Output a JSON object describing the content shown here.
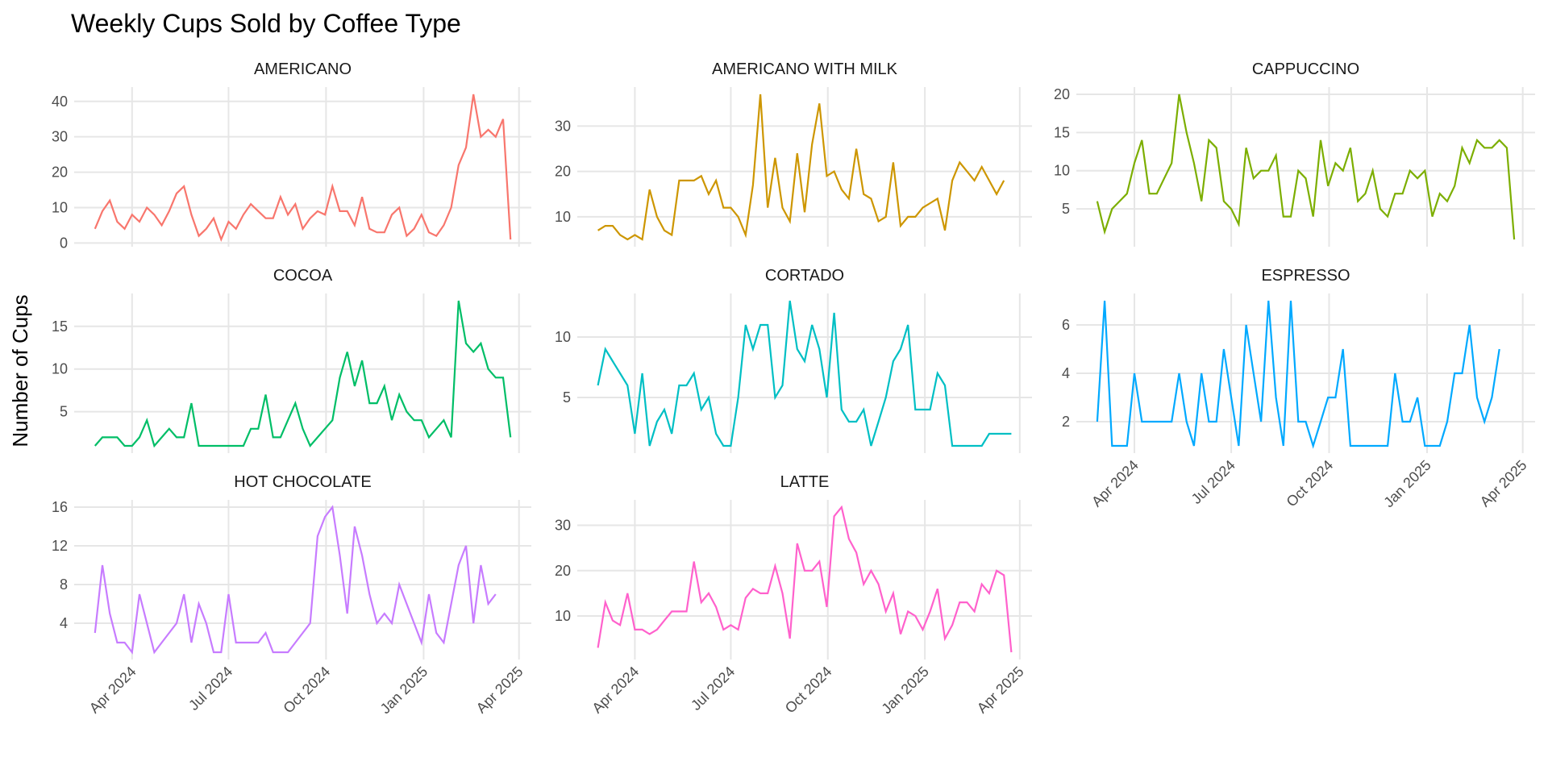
{
  "title": "Weekly Cups Sold by Coffee Type",
  "y_label": "Number of Cups",
  "x": [
    0,
    1,
    2,
    3,
    4,
    5,
    6,
    7,
    8,
    9,
    10,
    11,
    12,
    13,
    14,
    15,
    16,
    17,
    18,
    19,
    20,
    21,
    22,
    23,
    24,
    25,
    26,
    27,
    28,
    29,
    30,
    31,
    32,
    33,
    34,
    35,
    36,
    37,
    38,
    39,
    40,
    41,
    42,
    43,
    44,
    45,
    46,
    47,
    48,
    49,
    50,
    51,
    52,
    53,
    54,
    55,
    56
  ],
  "xlim": [
    -2.8,
    58.8
  ],
  "xticks": [
    {
      "value": 5,
      "label": "Apr 2024"
    },
    {
      "value": 18,
      "label": "Jul 2024"
    },
    {
      "value": 31.14,
      "label": "Oct 2024"
    },
    {
      "value": 44.29,
      "label": "Jan 2025"
    },
    {
      "value": 57.14,
      "label": "Apr 2025"
    }
  ],
  "chart_data": [
    {
      "type": "line",
      "title": "AMERICANO",
      "color": "#F8766D",
      "ylim": [
        -1.05,
        44.05
      ],
      "yticks": [
        0,
        10,
        20,
        30,
        40
      ],
      "values": [
        4,
        9,
        12,
        6,
        4,
        8,
        6,
        10,
        8,
        5,
        9,
        14,
        16,
        8,
        2,
        4,
        7,
        1,
        6,
        4,
        8,
        11,
        9,
        7,
        7,
        13,
        8,
        11,
        4,
        7,
        9,
        8,
        16,
        9,
        9,
        5,
        13,
        4,
        3,
        3,
        8,
        10,
        2,
        4,
        8,
        3,
        2,
        5,
        10,
        22,
        27,
        42,
        30,
        32,
        30,
        35,
        1
      ]
    },
    {
      "type": "line",
      "title": "AMERICANO WITH MILK",
      "color": "#CD9600",
      "ylim": [
        3.4,
        38.6
      ],
      "yticks": [
        10,
        20,
        30
      ],
      "values": [
        7,
        8,
        8,
        6,
        5,
        6,
        5,
        16,
        10,
        7,
        6,
        18,
        18,
        18,
        19,
        15,
        18,
        12,
        12,
        10,
        6,
        17,
        37,
        12,
        23,
        12,
        9,
        24,
        11,
        26,
        35,
        19,
        20,
        16,
        14,
        25,
        15,
        14,
        9,
        10,
        22,
        8,
        10,
        10,
        12,
        13,
        14,
        7,
        18,
        22,
        20,
        18,
        21,
        18,
        15,
        18,
        null
      ]
    },
    {
      "type": "line",
      "title": "CAPPUCCINO",
      "color": "#7CAE00",
      "ylim": [
        0.05,
        20.95
      ],
      "yticks": [
        5,
        10,
        15,
        20
      ],
      "values": [
        6,
        2,
        5,
        6,
        7,
        11,
        14,
        7,
        7,
        9,
        11,
        20,
        15,
        11,
        6,
        14,
        13,
        6,
        5,
        3,
        13,
        9,
        10,
        10,
        12,
        4,
        4,
        10,
        9,
        4,
        14,
        8,
        11,
        10,
        13,
        6,
        7,
        10,
        5,
        4,
        7,
        7,
        10,
        9,
        10,
        4,
        7,
        6,
        8,
        13,
        11,
        14,
        13,
        13,
        14,
        13,
        1
      ]
    },
    {
      "type": "line",
      "title": "COCOA",
      "color": "#00BE67",
      "ylim": [
        0.15,
        18.85
      ],
      "yticks": [
        5,
        10,
        15
      ],
      "values": [
        1,
        2,
        2,
        2,
        1,
        1,
        2,
        4,
        1,
        2,
        3,
        2,
        2,
        6,
        1,
        1,
        1,
        1,
        1,
        1,
        1,
        3,
        3,
        7,
        2,
        2,
        4,
        6,
        3,
        1,
        2,
        3,
        4,
        9,
        12,
        8,
        11,
        6,
        6,
        8,
        4,
        7,
        5,
        4,
        4,
        2,
        3,
        4,
        2,
        18,
        13,
        12,
        13,
        10,
        9,
        9,
        2
      ]
    },
    {
      "type": "line",
      "title": "CORTADO",
      "color": "#00BFC4",
      "ylim": [
        0.4,
        13.6
      ],
      "yticks": [
        5,
        10
      ],
      "values": [
        6,
        9,
        8,
        7,
        6,
        2,
        7,
        1,
        3,
        4,
        2,
        6,
        6,
        7,
        4,
        5,
        2,
        1,
        1,
        5,
        11,
        9,
        11,
        11,
        5,
        6,
        13,
        9,
        8,
        11,
        9,
        5,
        12,
        4,
        3,
        3,
        4,
        1,
        3,
        5,
        8,
        9,
        11,
        4,
        4,
        4,
        7,
        6,
        1,
        1,
        1,
        1,
        1,
        2,
        2,
        2,
        2
      ]
    },
    {
      "type": "line",
      "title": "ESPRESSO",
      "color": "#00A9FF",
      "ylim": [
        0.7,
        7.3
      ],
      "yticks": [
        2,
        4,
        6
      ],
      "values": [
        2,
        7,
        1,
        1,
        1,
        4,
        2,
        2,
        2,
        2,
        2,
        4,
        2,
        1,
        4,
        2,
        2,
        5,
        3,
        1,
        6,
        4,
        2,
        7,
        3,
        1,
        7,
        2,
        2,
        1,
        2,
        3,
        3,
        5,
        1,
        1,
        1,
        1,
        1,
        1,
        4,
        2,
        2,
        3,
        1,
        1,
        1,
        2,
        4,
        4,
        6,
        3,
        2,
        3,
        5,
        null,
        null
      ]
    },
    {
      "type": "line",
      "title": "HOT CHOCOLATE",
      "color": "#C77CFF",
      "ylim": [
        0.25,
        16.75
      ],
      "yticks": [
        4,
        8,
        12,
        16
      ],
      "values": [
        3,
        10,
        5,
        2,
        2,
        1,
        7,
        4,
        1,
        2,
        3,
        4,
        7,
        2,
        6,
        4,
        1,
        1,
        7,
        2,
        2,
        2,
        2,
        3,
        1,
        1,
        1,
        2,
        3,
        4,
        13,
        15,
        16,
        11,
        5,
        14,
        11,
        7,
        4,
        5,
        4,
        8,
        6,
        4,
        2,
        7,
        3,
        2,
        6,
        10,
        12,
        4,
        10,
        6,
        7,
        null,
        null
      ]
    },
    {
      "type": "line",
      "title": "LATTE",
      "color": "#FF61CC",
      "ylim": [
        0.4,
        35.6
      ],
      "yticks": [
        10,
        20,
        30
      ],
      "values": [
        3,
        13,
        9,
        8,
        15,
        7,
        7,
        6,
        7,
        9,
        11,
        11,
        11,
        22,
        13,
        15,
        12,
        7,
        8,
        7,
        14,
        16,
        15,
        15,
        21,
        15,
        5,
        26,
        20,
        20,
        22,
        12,
        32,
        34,
        27,
        24,
        17,
        20,
        17,
        11,
        15,
        6,
        11,
        10,
        7,
        11,
        16,
        5,
        8,
        13,
        13,
        11,
        17,
        15,
        20,
        19,
        2
      ]
    }
  ]
}
